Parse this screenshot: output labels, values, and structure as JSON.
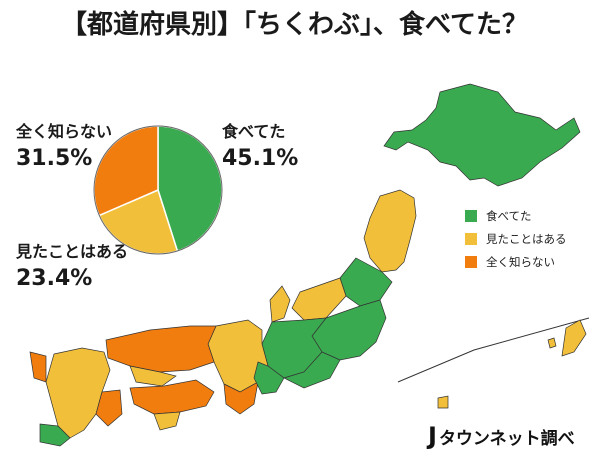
{
  "title": "【都道府県別】「ちくわぶ」、食べてた？",
  "chart_data": {
    "type": "pie",
    "slices": [
      {
        "label": "食べてた",
        "value": 45.1,
        "display": "45.1%",
        "color": "#3aaa50"
      },
      {
        "label": "見たことはある",
        "value": 23.4,
        "display": "23.4%",
        "color": "#f2bf3a"
      },
      {
        "label": "全く知らない",
        "value": 31.5,
        "display": "31.5%",
        "color": "#f27d0f"
      }
    ],
    "legend": [
      "食べてた",
      "見たことはある",
      "全く知らない"
    ],
    "legend_position": "right"
  },
  "colors": {
    "ate": "#3aaa50",
    "seen": "#f2bf3a",
    "unknown": "#f27d0f"
  },
  "brand": {
    "mark": "J",
    "text": "タウンネット調べ"
  }
}
